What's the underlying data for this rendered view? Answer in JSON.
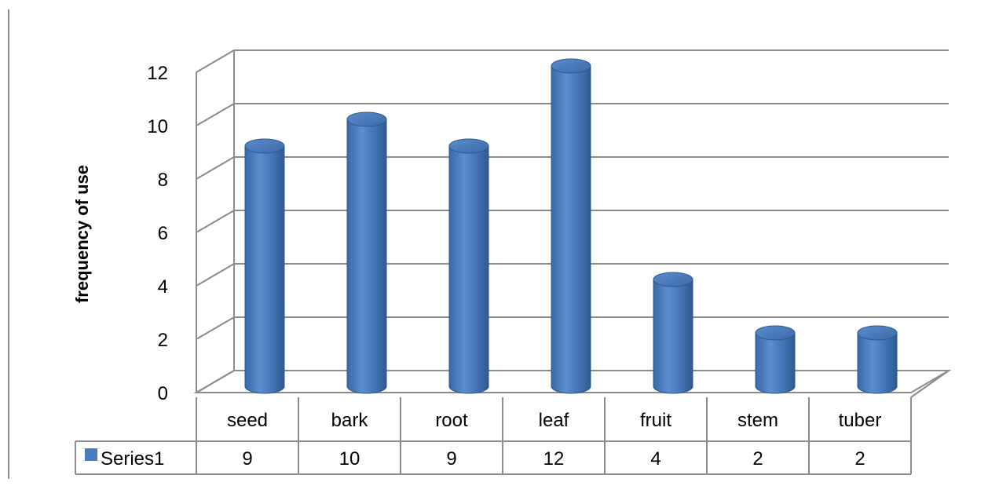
{
  "chart_data": {
    "type": "bar",
    "style": "3d-cylinder",
    "categories": [
      "seed",
      "bark",
      "root",
      "leaf",
      "fruit",
      "stem",
      "tuber"
    ],
    "series": [
      {
        "name": "Series1",
        "values": [
          9,
          10,
          9,
          12,
          4,
          2,
          2
        ],
        "color": "#4a7ebb"
      }
    ],
    "title": "",
    "xlabel": "",
    "ylabel": "frequency of use",
    "ylim": [
      0,
      12
    ],
    "yticks": [
      "0",
      "2",
      "4",
      "6",
      "8",
      "10",
      "12"
    ],
    "grid": true,
    "legend": "data-table",
    "data_table": true
  }
}
